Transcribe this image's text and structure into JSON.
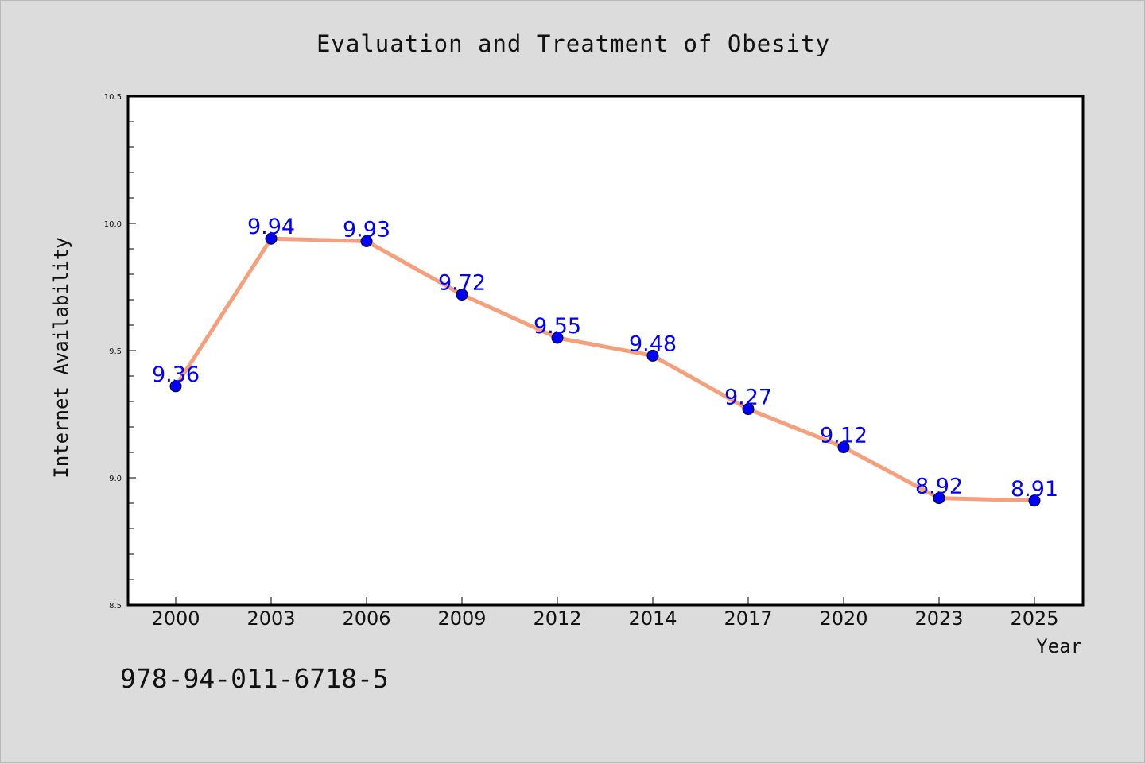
{
  "chart_data": {
    "type": "line",
    "title": "Evaluation and Treatment of Obesity",
    "xlabel": "Year",
    "ylabel": "Internet Availability",
    "categories": [
      "2000",
      "2003",
      "2006",
      "2009",
      "2012",
      "2014",
      "2017",
      "2020",
      "2023",
      "2025"
    ],
    "values": [
      9.36,
      9.94,
      9.93,
      9.72,
      9.55,
      9.48,
      9.27,
      9.12,
      8.92,
      8.91
    ],
    "data_labels": [
      "9.36",
      "9.94",
      "9.93",
      "9.72",
      "9.55",
      "9.48",
      "9.27",
      "9.12",
      "8.92",
      "8.91"
    ],
    "ylim": [
      8.5,
      10.5
    ],
    "yticks": [
      "8.5",
      "9.0",
      "9.5",
      "10.0",
      "10.5"
    ],
    "yticks_values": [
      8.5,
      9.0,
      9.5,
      10.0,
      10.5
    ],
    "grid": false,
    "legend": "none",
    "line_color": "#f4a07c",
    "marker_color": "#0000ff",
    "label_color": "#0000ff"
  },
  "footer_text": "978-94-011-6718-5"
}
